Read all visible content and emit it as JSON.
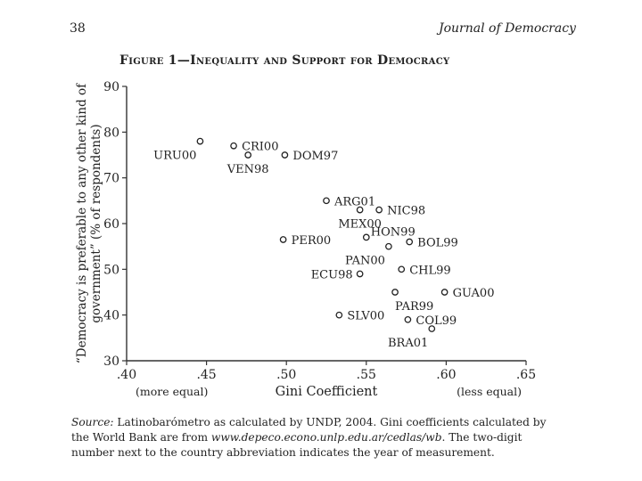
{
  "header": {
    "page_number": "38",
    "journal": "Journal of Democracy"
  },
  "figure": {
    "title": "Figure 1—Inequality and Support for Democracy"
  },
  "chart_data": {
    "type": "scatter",
    "title": "Figure 1—Inequality and Support for Democracy",
    "xlabel": "Gini Coefficient",
    "xlabel_left": "(more equal)",
    "xlabel_right": "(less equal)",
    "ylabel": "“Democracy is preferable to any other kind of government” (% of respondents)",
    "ylabel_line1": "“Democracy is preferable to any other kind of",
    "ylabel_line2": "government” (% of respondents)",
    "xlim": [
      0.4,
      0.65
    ],
    "ylim": [
      30,
      90
    ],
    "xticks": [
      ".40",
      ".45",
      ".50",
      ".55",
      ".60",
      ".65"
    ],
    "yticks": [
      "30",
      "40",
      "50",
      "60",
      "70",
      "80",
      "90"
    ],
    "points": [
      {
        "label": "URU00",
        "x": 0.446,
        "y": 78,
        "pos": "below-left"
      },
      {
        "label": "CRI00",
        "x": 0.467,
        "y": 77,
        "pos": "right"
      },
      {
        "label": "VEN98",
        "x": 0.476,
        "y": 75,
        "pos": "below"
      },
      {
        "label": "DOM97",
        "x": 0.499,
        "y": 75,
        "pos": "right"
      },
      {
        "label": "ARG01",
        "x": 0.525,
        "y": 65,
        "pos": "right"
      },
      {
        "label": "MEX00",
        "x": 0.546,
        "y": 63,
        "pos": "below"
      },
      {
        "label": "NIC98",
        "x": 0.558,
        "y": 63,
        "pos": "right"
      },
      {
        "label": "HON99",
        "x": 0.55,
        "y": 57,
        "pos": "upper-right"
      },
      {
        "label": "PER00",
        "x": 0.498,
        "y": 56.5,
        "pos": "right"
      },
      {
        "label": "PAN00",
        "x": 0.564,
        "y": 55,
        "pos": "below-left"
      },
      {
        "label": "BOL99",
        "x": 0.577,
        "y": 56,
        "pos": "right"
      },
      {
        "label": "CHL99",
        "x": 0.572,
        "y": 50,
        "pos": "right"
      },
      {
        "label": "ECU98",
        "x": 0.546,
        "y": 49,
        "pos": "left"
      },
      {
        "label": "PAR99",
        "x": 0.568,
        "y": 45,
        "pos": "below-right"
      },
      {
        "label": "GUA00",
        "x": 0.599,
        "y": 45,
        "pos": "right"
      },
      {
        "label": "SLV00",
        "x": 0.533,
        "y": 40,
        "pos": "right"
      },
      {
        "label": "COL99",
        "x": 0.576,
        "y": 39,
        "pos": "right"
      },
      {
        "label": "BRA01",
        "x": 0.591,
        "y": 37,
        "pos": "below-left"
      }
    ]
  },
  "source": {
    "label": "Source:",
    "text1": " Latinobarómetro as calculated by UNDP, 2004. Gini coefficients calculated by the World Bank are from ",
    "url": "www.depeco.econo.unlp.edu.ar/cedlas/wb",
    "text2": ". The two-digit number next to the country abbreviation indicates the year of measurement."
  }
}
